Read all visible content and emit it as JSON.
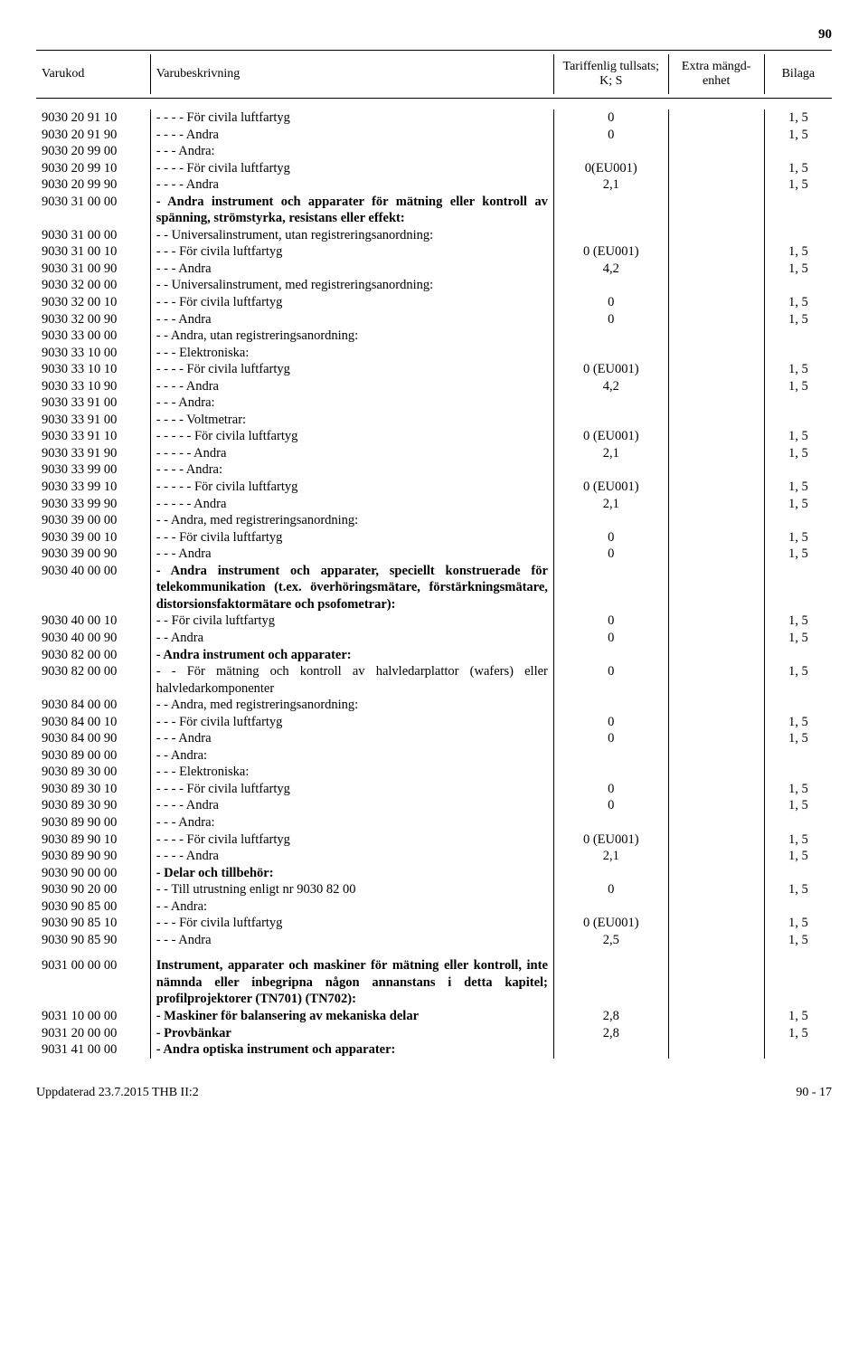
{
  "page_top_number": "90",
  "headers": {
    "col1": "Varukod",
    "col2": "Varubeskrivning",
    "col3_line1": "Tariffenlig tullsats;",
    "col3_line2": "K; S",
    "col4_line1": "Extra mängd-",
    "col4_line2": "enhet",
    "col5": "Bilaga"
  },
  "rows": [
    {
      "code": "9030 20 91 10",
      "desc": "- - - - För civila luftfartyg",
      "tariff": "0",
      "bilaga": "1, 5"
    },
    {
      "code": "9030 20 91 90",
      "desc": "- - - - Andra",
      "tariff": "0",
      "bilaga": "1, 5"
    },
    {
      "code": "9030 20 99 00",
      "desc": "- - - Andra:"
    },
    {
      "code": "9030 20 99 10",
      "desc": "- - - - För civila luftfartyg",
      "tariff": "0(EU001)",
      "bilaga": "1, 5"
    },
    {
      "code": "9030 20 99 90",
      "desc": "- - - - Andra",
      "tariff": "2,1",
      "bilaga": "1, 5"
    },
    {
      "code": "9030 31 00 00",
      "desc": "- Andra instrument och apparater för mätning eller kontroll av spänning, strömstyrka, resistans eller effekt:",
      "bold": true
    },
    {
      "code": "9030 31 00 00",
      "desc": "- - Universalinstrument, utan registreringsanordning:"
    },
    {
      "code": "9030 31 00 10",
      "desc": "- - - För civila luftfartyg",
      "tariff": "0 (EU001)",
      "bilaga": "1, 5"
    },
    {
      "code": "9030 31 00 90",
      "desc": "- - - Andra",
      "tariff": "4,2",
      "bilaga": "1, 5"
    },
    {
      "code": "9030 32 00 00",
      "desc": "- - Universalinstrument, med registreringsanordning:"
    },
    {
      "code": "9030 32 00 10",
      "desc": "- - - För civila luftfartyg",
      "tariff": "0",
      "bilaga": "1, 5"
    },
    {
      "code": "9030 32 00 90",
      "desc": "- - - Andra",
      "tariff": "0",
      "bilaga": "1, 5"
    },
    {
      "code": "9030 33 00 00",
      "desc": "- - Andra, utan registreringsanordning:"
    },
    {
      "code": "9030 33 10 00",
      "desc": "- - - Elektroniska:"
    },
    {
      "code": "9030 33 10 10",
      "desc": "- - - - För civila luftfartyg",
      "tariff": "0 (EU001)",
      "bilaga": "1, 5"
    },
    {
      "code": "9030 33 10 90",
      "desc": "- - - - Andra",
      "tariff": "4,2",
      "bilaga": "1, 5"
    },
    {
      "code": "9030 33 91 00",
      "desc": "- - - Andra:"
    },
    {
      "code": "9030 33 91 00",
      "desc": "- - - - Voltmetrar:"
    },
    {
      "code": "9030 33 91 10",
      "desc": "- - - - - För civila luftfartyg",
      "tariff": "0 (EU001)",
      "bilaga": "1, 5"
    },
    {
      "code": "9030 33 91 90",
      "desc": "- - - - - Andra",
      "tariff": "2,1",
      "bilaga": "1, 5"
    },
    {
      "code": "9030 33 99 00",
      "desc": "- - - - Andra:"
    },
    {
      "code": "9030 33 99 10",
      "desc": "- - - - - För civila luftfartyg",
      "tariff": "0 (EU001)",
      "bilaga": "1, 5"
    },
    {
      "code": "9030 33 99 90",
      "desc": "- - - - - Andra",
      "tariff": "2,1",
      "bilaga": "1, 5"
    },
    {
      "code": "9030 39 00 00",
      "desc": "- - Andra, med registreringsanordning:"
    },
    {
      "code": "9030 39 00 10",
      "desc": "- - - För civila luftfartyg",
      "tariff": "0",
      "bilaga": "1, 5"
    },
    {
      "code": "9030 39 00 90",
      "desc": "- - - Andra",
      "tariff": "0",
      "bilaga": "1, 5"
    },
    {
      "code": "9030 40 00 00",
      "desc": "- Andra instrument och apparater, speciellt konstruerade för telekommunikation (t.ex. överhöringsmätare, förstärkningsmätare, distorsionsfaktormätare och psofometrar):",
      "bold": true
    },
    {
      "code": "9030 40 00 10",
      "desc": "- - För civila luftfartyg",
      "tariff": "0",
      "bilaga": "1, 5"
    },
    {
      "code": "9030 40 00 90",
      "desc": "- - Andra",
      "tariff": "0",
      "bilaga": "1, 5"
    },
    {
      "code": "9030 82 00 00",
      "desc": "- Andra instrument och apparater:",
      "bold": true
    },
    {
      "code": "9030 82 00 00",
      "desc": "- - För mätning och kontroll av halvledarplattor (wafers) eller halvledarkomponenter",
      "tariff": "0",
      "bilaga": "1, 5"
    },
    {
      "code": "9030 84 00 00",
      "desc": "- - Andra, med registreringsanordning:"
    },
    {
      "code": "9030 84 00 10",
      "desc": "- - - För civila luftfartyg",
      "tariff": "0",
      "bilaga": "1, 5"
    },
    {
      "code": "9030 84 00 90",
      "desc": "- - - Andra",
      "tariff": "0",
      "bilaga": "1, 5"
    },
    {
      "code": "9030 89 00 00",
      "desc": "- - Andra:"
    },
    {
      "code": "9030 89 30 00",
      "desc": "- - - Elektroniska:"
    },
    {
      "code": "9030 89 30 10",
      "desc": "- - - - För civila luftfartyg",
      "tariff": "0",
      "bilaga": "1, 5"
    },
    {
      "code": "9030 89 30 90",
      "desc": "- - - - Andra",
      "tariff": "0",
      "bilaga": "1, 5"
    },
    {
      "code": "9030 89 90 00",
      "desc": "- - - Andra:"
    },
    {
      "code": "9030 89 90 10",
      "desc": "- - - - För civila luftfartyg",
      "tariff": "0 (EU001)",
      "bilaga": "1, 5"
    },
    {
      "code": "9030 89 90 90",
      "desc": "- - - - Andra",
      "tariff": "2,1",
      "bilaga": "1, 5"
    },
    {
      "code": "9030 90 00 00",
      "desc": "- Delar och tillbehör:",
      "bold": true
    },
    {
      "code": "9030 90 20 00",
      "desc": "- - Till utrustning enligt nr 9030 82 00",
      "tariff": "0",
      "bilaga": "1, 5"
    },
    {
      "code": "9030 90 85 00",
      "desc": "- - Andra:"
    },
    {
      "code": "9030 90 85 10",
      "desc": "- - - För civila luftfartyg",
      "tariff": "0 (EU001)",
      "bilaga": "1, 5"
    },
    {
      "code": "9030 90 85 90",
      "desc": "- - - Andra",
      "tariff": "2,5",
      "bilaga": "1, 5"
    }
  ],
  "rows2": [
    {
      "code": "9031 00 00 00",
      "desc": "Instrument, apparater och maskiner för mätning eller kontroll, inte nämnda eller inbegripna någon annanstans i detta kapitel; profilprojektorer (TN701) (TN702):",
      "bold": true
    },
    {
      "code": "9031 10 00 00",
      "desc": "- Maskiner för balansering av mekaniska delar",
      "tariff": "2,8",
      "bilaga": "1, 5",
      "bold": true
    },
    {
      "code": "9031 20 00 00",
      "desc": "- Provbänkar",
      "tariff": "2,8",
      "bilaga": "1, 5",
      "bold": true
    },
    {
      "code": "9031 41 00 00",
      "desc": "- Andra optiska instrument och apparater:",
      "bold": true
    }
  ],
  "footer_left": "Uppdaterad 23.7.2015 THB II:2",
  "footer_right": "90 - 17"
}
